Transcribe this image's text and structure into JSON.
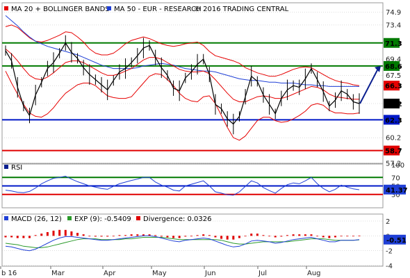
{
  "legend": {
    "ma20_bb": "MA 20 + BOLLINGER BANDS",
    "ma50": "MA 50 - EUR - RESEARCH",
    "copyright": "© 2016 TRADING CENTRAL",
    "rsi": "RSI",
    "macd": "MACD (26, 12)",
    "exp": "EXP (9): -0.5409",
    "divergence": "Divergence: 0.0326"
  },
  "colors": {
    "bollinger": "#e60000",
    "ma50": "#1f3fd6",
    "support": "#0018c8",
    "resistance": "#007a00",
    "low_line": "#e00000",
    "price": "#000000",
    "arrow": "#0a1f8f",
    "macd_line": "#1f3fd6",
    "exp_line": "#2a9a2a",
    "divergence_bar": "#e00000",
    "grid": "#bbbbbb"
  },
  "x_labels": [
    "b 16",
    "Mar",
    "Apr",
    "May",
    "Jun",
    "Jul",
    "Aug"
  ],
  "chart_data": [
    {
      "type": "line",
      "title": "MA 20 + BOLLINGER BANDS / MA 50 - EUR - RESEARCH",
      "y_ticks": [
        "74.9",
        "73.4",
        "71.3",
        "69.4",
        "68.6",
        "67.5",
        "66.3",
        "64.2",
        "62.3",
        "60.2",
        "58.7",
        "57.2"
      ],
      "ylim": [
        57.2,
        76.0
      ],
      "horizontal_levels": [
        {
          "value": 71.3,
          "label": "71.3",
          "color": "#007a00"
        },
        {
          "value": 68.6,
          "label": "68.6",
          "color": "#007a00"
        },
        {
          "value": 66.3,
          "label": "66.3",
          "color": "#e60000"
        },
        {
          "value": 64.2,
          "label": "64.2",
          "color": "#000000"
        },
        {
          "value": 62.3,
          "label": "62.3",
          "color": "#0018c8"
        },
        {
          "value": 58.7,
          "label": "58.7",
          "color": "#e00000"
        }
      ],
      "series": [
        {
          "name": "Price",
          "values": [
            70.4,
            69.2,
            66.1,
            63.9,
            62.8,
            65.2,
            66.7,
            68.3,
            69.0,
            70.1,
            71.3,
            70.2,
            69.5,
            68.4,
            67.6,
            67.0,
            66.4,
            65.8,
            66.9,
            67.9,
            68.3,
            69.0,
            69.8,
            70.7,
            71.0,
            69.6,
            68.4,
            67.5,
            66.0,
            65.7,
            67.2,
            67.9,
            68.8,
            69.4,
            67.6,
            64.1,
            63.6,
            62.4,
            61.8,
            62.7,
            65.0,
            67.4,
            66.8,
            65.2,
            64.1,
            63.0,
            64.8,
            65.8,
            66.3,
            66.1,
            67.1,
            68.3,
            67.0,
            65.6,
            63.9,
            64.6,
            65.7,
            65.3,
            64.4,
            64.2
          ]
        },
        {
          "name": "MA 20",
          "values": [
            70.6,
            70.0,
            69.2,
            68.3,
            67.5,
            67.1,
            67.0,
            67.3,
            67.8,
            68.4,
            69.0,
            69.2,
            69.2,
            69.0,
            68.6,
            68.2,
            67.8,
            67.5,
            67.5,
            67.7,
            68.0,
            68.3,
            68.8,
            69.3,
            69.6,
            69.6,
            69.4,
            69.0,
            68.6,
            68.2,
            68.0,
            67.9,
            67.9,
            68.0,
            67.7,
            67.0,
            66.2,
            65.4,
            64.7,
            64.4,
            64.4,
            64.7,
            65.0,
            65.1,
            65.0,
            64.8,
            64.8,
            65.0,
            65.3,
            65.6,
            65.9,
            66.2,
            66.1,
            65.8,
            65.3,
            65.0,
            64.9,
            64.8,
            64.7,
            64.7
          ]
        },
        {
          "name": "Bollinger Upper",
          "values": [
            73.2,
            73.4,
            73.1,
            72.5,
            71.9,
            71.5,
            71.4,
            71.6,
            71.9,
            72.2,
            72.6,
            72.5,
            72.0,
            71.4,
            70.6,
            70.1,
            69.9,
            69.9,
            70.1,
            70.6,
            71.2,
            71.6,
            71.8,
            72.0,
            71.8,
            71.5,
            71.2,
            71.0,
            70.9,
            71.0,
            71.2,
            71.3,
            71.4,
            71.0,
            70.3,
            69.8,
            69.6,
            69.4,
            69.2,
            68.9,
            68.4,
            68.1,
            67.8,
            67.6,
            67.4,
            67.4,
            67.6,
            67.9,
            68.2,
            68.4,
            68.5,
            68.4,
            68.0,
            67.6,
            67.2,
            66.9,
            66.7,
            66.6,
            66.4,
            66.3
          ]
        },
        {
          "name": "Bollinger Lower",
          "values": [
            68.0,
            66.6,
            65.3,
            64.1,
            63.1,
            62.7,
            62.6,
            63.0,
            63.7,
            64.6,
            65.4,
            65.9,
            66.4,
            66.6,
            66.6,
            66.3,
            65.7,
            65.1,
            64.9,
            64.8,
            64.8,
            65.0,
            65.8,
            66.6,
            67.4,
            67.7,
            67.6,
            67.0,
            66.3,
            65.4,
            64.8,
            64.5,
            64.4,
            65.0,
            65.1,
            64.2,
            62.8,
            61.4,
            60.2,
            59.9,
            60.4,
            61.3,
            62.2,
            62.6,
            62.6,
            62.2,
            62.0,
            62.1,
            62.4,
            62.8,
            63.3,
            64.0,
            64.2,
            64.0,
            63.4,
            63.1,
            63.1,
            63.0,
            63.0,
            63.1
          ]
        },
        {
          "name": "MA 50",
          "values": [
            74.5,
            73.9,
            73.3,
            72.6,
            72.0,
            71.5,
            71.2,
            70.9,
            70.7,
            70.5,
            70.3,
            70.1,
            69.9,
            69.6,
            69.3,
            69.0,
            68.7,
            68.5,
            68.3,
            68.3,
            68.3,
            68.3,
            68.4,
            68.6,
            68.7,
            68.8,
            68.9,
            68.8,
            68.7,
            68.5,
            68.3,
            68.2,
            68.1,
            68.0,
            68.0,
            67.9,
            67.7,
            67.5,
            67.3,
            67.1,
            67.0,
            66.9,
            66.9,
            66.8,
            66.7,
            66.7,
            66.6,
            66.6,
            66.6,
            66.5,
            66.4,
            66.4,
            66.3,
            66.3,
            66.2,
            66.2,
            66.2,
            66.2,
            66.2,
            66.2
          ]
        }
      ],
      "projection": {
        "from": 64.2,
        "to": 68.6
      }
    },
    {
      "type": "line",
      "title": "RSI",
      "y_ticks": [
        "100",
        "70",
        "50",
        "30"
      ],
      "ylim": [
        0,
        100
      ],
      "horizontal_levels": [
        {
          "value": 70,
          "label": "70",
          "color": "#007a00"
        },
        {
          "value": 50,
          "label": "50",
          "color": "#0018c8"
        },
        {
          "value": 30,
          "label": "30",
          "color": "#e00000"
        }
      ],
      "last_value": "41.37",
      "series": [
        {
          "name": "RSI",
          "values": [
            40,
            38,
            35,
            34,
            37,
            45,
            55,
            62,
            68,
            70,
            73,
            66,
            60,
            55,
            50,
            47,
            44,
            42,
            49,
            55,
            59,
            63,
            66,
            70,
            70,
            59,
            52,
            47,
            40,
            38,
            50,
            54,
            58,
            62,
            50,
            36,
            33,
            29,
            28,
            36,
            49,
            62,
            57,
            46,
            39,
            33,
            44,
            53,
            57,
            55,
            62,
            70,
            55,
            44,
            36,
            42,
            52,
            47,
            43,
            41
          ]
        }
      ]
    },
    {
      "type": "line",
      "title": "MACD (26, 12)",
      "y_ticks": [
        "2",
        "0",
        "-2",
        "-4"
      ],
      "ylim": [
        -4,
        2
      ],
      "last_value": "-0.51",
      "series": [
        {
          "name": "MACD",
          "values": [
            -1.4,
            -1.5,
            -1.7,
            -1.9,
            -2.0,
            -1.8,
            -1.4,
            -1.0,
            -0.6,
            -0.3,
            -0.1,
            -0.1,
            -0.2,
            -0.3,
            -0.4,
            -0.5,
            -0.6,
            -0.6,
            -0.5,
            -0.4,
            -0.3,
            -0.2,
            -0.1,
            0.0,
            0.0,
            -0.1,
            -0.3,
            -0.5,
            -0.7,
            -0.8,
            -0.6,
            -0.5,
            -0.4,
            -0.3,
            -0.4,
            -0.7,
            -1.0,
            -1.3,
            -1.5,
            -1.4,
            -1.1,
            -0.7,
            -0.6,
            -0.7,
            -0.8,
            -1.0,
            -0.9,
            -0.7,
            -0.5,
            -0.4,
            -0.3,
            -0.2,
            -0.4,
            -0.6,
            -0.8,
            -0.8,
            -0.6,
            -0.6,
            -0.6,
            -0.51
          ]
        },
        {
          "name": "EXP (9)",
          "values": [
            -1.0,
            -1.1,
            -1.2,
            -1.4,
            -1.5,
            -1.6,
            -1.6,
            -1.5,
            -1.3,
            -1.1,
            -0.9,
            -0.7,
            -0.5,
            -0.4,
            -0.4,
            -0.4,
            -0.5,
            -0.5,
            -0.5,
            -0.5,
            -0.4,
            -0.4,
            -0.3,
            -0.2,
            -0.2,
            -0.2,
            -0.2,
            -0.3,
            -0.4,
            -0.5,
            -0.5,
            -0.5,
            -0.5,
            -0.5,
            -0.5,
            -0.5,
            -0.6,
            -0.8,
            -1.0,
            -1.1,
            -1.1,
            -1.0,
            -0.9,
            -0.8,
            -0.8,
            -0.8,
            -0.8,
            -0.8,
            -0.7,
            -0.6,
            -0.5,
            -0.4,
            -0.4,
            -0.4,
            -0.5,
            -0.6,
            -0.6,
            -0.6,
            -0.6,
            -0.5409
          ]
        },
        {
          "name": "Divergence",
          "values": [
            -0.2,
            -0.2,
            -0.3,
            -0.3,
            -0.3,
            0.1,
            0.3,
            0.5,
            0.7,
            0.8,
            0.8,
            0.6,
            0.4,
            0.2,
            0.0,
            -0.1,
            -0.1,
            -0.1,
            0.0,
            0.1,
            0.1,
            0.2,
            0.2,
            0.2,
            0.2,
            0.1,
            -0.1,
            -0.2,
            -0.3,
            -0.3,
            -0.1,
            0.0,
            0.1,
            0.2,
            0.1,
            -0.2,
            -0.4,
            -0.5,
            -0.5,
            -0.3,
            0.0,
            0.3,
            0.3,
            0.1,
            0.0,
            -0.2,
            -0.1,
            0.1,
            0.2,
            0.2,
            0.2,
            0.2,
            0.0,
            -0.2,
            -0.3,
            -0.2,
            0.0,
            0.0,
            0.0,
            0.0326
          ]
        }
      ]
    }
  ]
}
